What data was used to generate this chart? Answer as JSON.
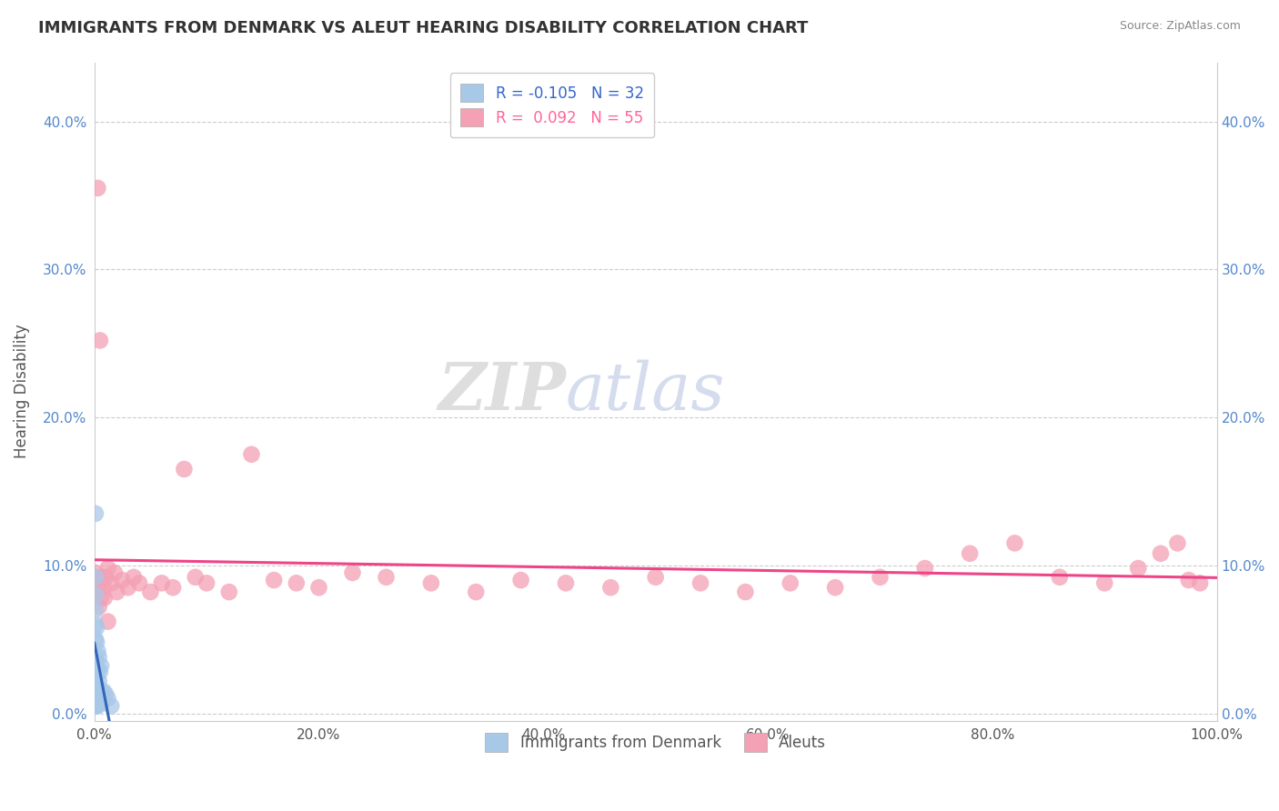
{
  "title": "IMMIGRANTS FROM DENMARK VS ALEUT HEARING DISABILITY CORRELATION CHART",
  "source": "Source: ZipAtlas.com",
  "ylabel": "Hearing Disability",
  "legend_label1": "Immigrants from Denmark",
  "legend_label2": "Aleuts",
  "R1": -0.105,
  "N1": 32,
  "R2": 0.092,
  "N2": 55,
  "color_blue": "#a8c8e8",
  "color_pink": "#f4a0b5",
  "color_trend_blue": "#3366bb",
  "color_trend_pink": "#ee4488",
  "color_trend_dashed": "#88aadd",
  "xlim": [
    0.0,
    1.0
  ],
  "ylim": [
    -0.005,
    0.44
  ],
  "xticks": [
    0.0,
    0.2,
    0.4,
    0.6,
    0.8,
    1.0
  ],
  "xtick_labels": [
    "0.0%",
    "20.0%",
    "40.0%",
    "60.0%",
    "80.0%",
    "100.0%"
  ],
  "yticks": [
    0.0,
    0.1,
    0.2,
    0.3,
    0.4
  ],
  "ytick_labels": [
    "0.0%",
    "10.0%",
    "20.0%",
    "30.0%",
    "40.0%"
  ],
  "watermark": "ZIPatlas",
  "blue_points_x": [
    0.001,
    0.001,
    0.001,
    0.001,
    0.001,
    0.001,
    0.001,
    0.001,
    0.002,
    0.002,
    0.002,
    0.002,
    0.002,
    0.002,
    0.003,
    0.003,
    0.003,
    0.003,
    0.004,
    0.004,
    0.004,
    0.005,
    0.005,
    0.006,
    0.006,
    0.007,
    0.008,
    0.01,
    0.012,
    0.015,
    0.001,
    0.001
  ],
  "blue_points_y": [
    0.005,
    0.015,
    0.025,
    0.035,
    0.05,
    0.06,
    0.07,
    0.08,
    0.005,
    0.015,
    0.025,
    0.035,
    0.048,
    0.058,
    0.005,
    0.018,
    0.03,
    0.042,
    0.008,
    0.022,
    0.038,
    0.01,
    0.028,
    0.012,
    0.032,
    0.008,
    0.015,
    0.013,
    0.01,
    0.005,
    0.135,
    0.092
  ],
  "pink_points_x": [
    0.001,
    0.002,
    0.003,
    0.004,
    0.005,
    0.006,
    0.008,
    0.01,
    0.012,
    0.015,
    0.018,
    0.02,
    0.025,
    0.03,
    0.035,
    0.04,
    0.05,
    0.06,
    0.07,
    0.08,
    0.09,
    0.1,
    0.12,
    0.14,
    0.16,
    0.18,
    0.2,
    0.23,
    0.26,
    0.3,
    0.34,
    0.38,
    0.42,
    0.46,
    0.5,
    0.54,
    0.58,
    0.62,
    0.66,
    0.7,
    0.74,
    0.78,
    0.82,
    0.86,
    0.9,
    0.93,
    0.95,
    0.965,
    0.975,
    0.985,
    0.003,
    0.005,
    0.007,
    0.009,
    0.012
  ],
  "pink_points_y": [
    0.095,
    0.082,
    0.091,
    0.072,
    0.088,
    0.078,
    0.085,
    0.092,
    0.098,
    0.088,
    0.095,
    0.082,
    0.09,
    0.085,
    0.092,
    0.088,
    0.082,
    0.088,
    0.085,
    0.165,
    0.092,
    0.088,
    0.082,
    0.175,
    0.09,
    0.088,
    0.085,
    0.095,
    0.092,
    0.088,
    0.082,
    0.09,
    0.088,
    0.085,
    0.092,
    0.088,
    0.082,
    0.088,
    0.085,
    0.092,
    0.098,
    0.108,
    0.115,
    0.092,
    0.088,
    0.098,
    0.108,
    0.115,
    0.09,
    0.088,
    0.355,
    0.252,
    0.092,
    0.078,
    0.062
  ]
}
